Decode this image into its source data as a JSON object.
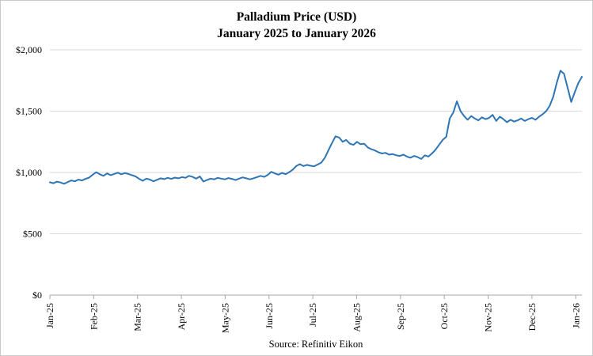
{
  "chart_data": {
    "type": "line",
    "title": "Palladium Price (USD)",
    "subtitle": "January 2025 to January 2026",
    "source": "Source: Refinitiv Eikon",
    "xlabel": "",
    "ylabel": "",
    "ylim": [
      0,
      2000
    ],
    "yticks": [
      0,
      500,
      1000,
      1500,
      2000
    ],
    "ytick_labels": [
      "$0",
      "$500",
      "$1,000",
      "$1,500",
      "$2,000"
    ],
    "x_tick_labels": [
      "Jan-25",
      "Feb-25",
      "Mar-25",
      "Apr-25",
      "May-25",
      "Jun-25",
      "Jul-25",
      "Aug-25",
      "Sep-25",
      "Oct-25",
      "Nov-25",
      "Dec-25",
      "Jan-26"
    ],
    "x_tick_positions": [
      0,
      1,
      2,
      3,
      4,
      5,
      6,
      7,
      8,
      9,
      10,
      11,
      12
    ],
    "xlim": [
      0,
      12.14
    ],
    "x_unit": "months since Jan-2025",
    "grid": true,
    "legend": false,
    "line_color": "#2E75B6",
    "gridline_color": "#d9d9d9",
    "axis_color": "#a6a6a6",
    "values": [
      920,
      912,
      925,
      918,
      908,
      922,
      935,
      928,
      942,
      935,
      948,
      958,
      982,
      1002,
      985,
      972,
      992,
      978,
      988,
      998,
      985,
      995,
      988,
      978,
      968,
      948,
      932,
      950,
      942,
      928,
      940,
      952,
      946,
      956,
      948,
      958,
      952,
      962,
      956,
      972,
      964,
      950,
      968,
      926,
      938,
      950,
      944,
      956,
      950,
      944,
      954,
      948,
      938,
      950,
      960,
      952,
      944,
      952,
      962,
      972,
      964,
      980,
      1005,
      992,
      982,
      996,
      986,
      1002,
      1022,
      1052,
      1068,
      1052,
      1062,
      1055,
      1050,
      1065,
      1080,
      1120,
      1180,
      1240,
      1295,
      1285,
      1250,
      1265,
      1235,
      1225,
      1250,
      1230,
      1235,
      1205,
      1190,
      1180,
      1165,
      1155,
      1160,
      1145,
      1150,
      1140,
      1135,
      1145,
      1130,
      1120,
      1135,
      1125,
      1110,
      1140,
      1130,
      1155,
      1185,
      1225,
      1265,
      1290,
      1440,
      1490,
      1580,
      1500,
      1460,
      1430,
      1460,
      1440,
      1425,
      1450,
      1435,
      1445,
      1470,
      1420,
      1455,
      1435,
      1410,
      1430,
      1415,
      1425,
      1440,
      1420,
      1435,
      1445,
      1430,
      1455,
      1475,
      1500,
      1545,
      1620,
      1735,
      1830,
      1805,
      1690,
      1575,
      1655,
      1730,
      1780
    ]
  }
}
